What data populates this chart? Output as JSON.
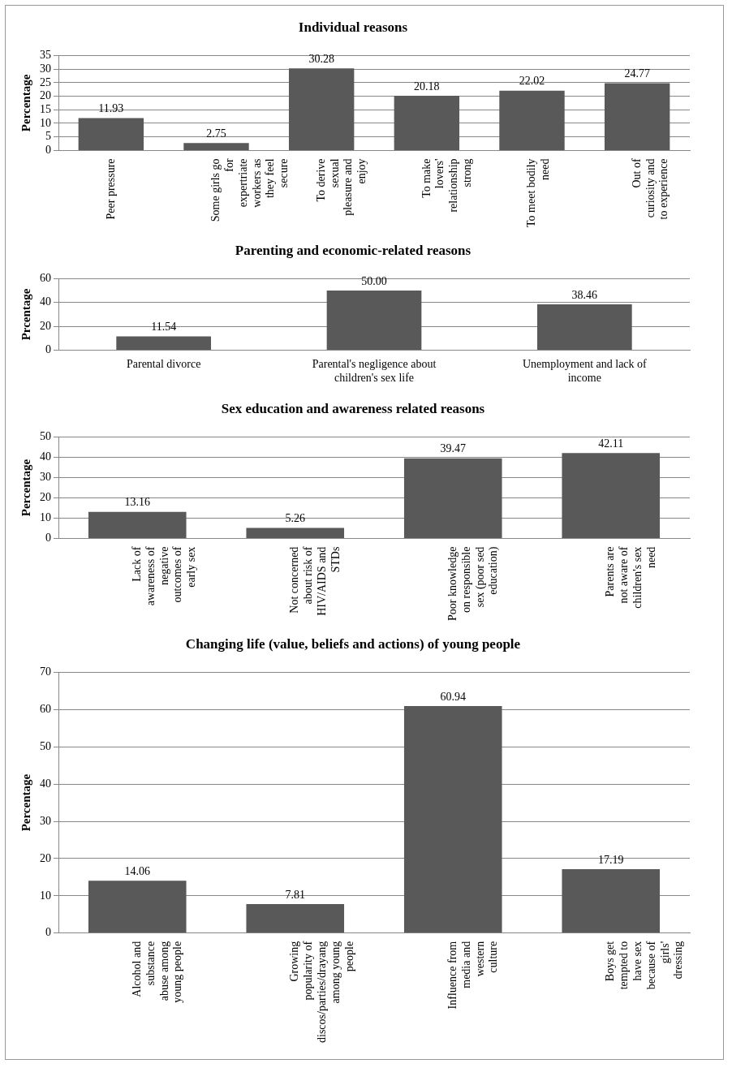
{
  "chart_data": [
    {
      "type": "bar",
      "title": "Individual reasons",
      "ylabel": "Percentage",
      "categories": [
        "Peer pressure",
        "Some girls go for expertriate workers as they feel secure",
        "To derive sexual pleasure and enjoy",
        "To make lovers' relationship strong",
        "To meet bodily need",
        "Out of curiosity and to experience"
      ],
      "values": [
        11.93,
        2.75,
        30.28,
        20.18,
        22.02,
        24.77
      ],
      "value_labels": [
        "11.93",
        "2.75",
        "30.28",
        "20.18",
        "22.02",
        "24.77"
      ],
      "color": "#595959",
      "ylim": [
        0,
        35
      ],
      "yticks": [
        0,
        5,
        10,
        15,
        20,
        25,
        30,
        35
      ],
      "grid": "y",
      "legend": false
    },
    {
      "type": "bar",
      "title": "Parenting and economic-related reasons",
      "ylabel": "Prcentage",
      "categories": [
        "Parental divorce",
        "Parental's negligence about children's sex life",
        "Unemployment and lack of income"
      ],
      "values": [
        11.54,
        50.0,
        38.46
      ],
      "value_labels": [
        "11.54",
        "50.00",
        "38.46"
      ],
      "color": "#595959",
      "ylim": [
        0,
        60
      ],
      "yticks": [
        0,
        20,
        40,
        60
      ],
      "grid": "y",
      "legend": false
    },
    {
      "type": "bar",
      "title": "Sex education and awareness related reasons",
      "ylabel": "Percentage",
      "categories": [
        "Lack of awareness of negative outcomes of early sex",
        "Not concerned about risk of HIV/AIDS and STDs",
        "Poor knowledge on responsible sex (poor sed education)",
        "Parents are not aware of children's sex need"
      ],
      "values": [
        13.16,
        5.26,
        39.47,
        42.11
      ],
      "value_labels": [
        "13.16",
        "5.26",
        "39.47",
        "42.11"
      ],
      "color": "#595959",
      "ylim": [
        0,
        50
      ],
      "yticks": [
        0,
        10,
        20,
        30,
        40,
        50
      ],
      "grid": "y",
      "legend": false
    },
    {
      "type": "bar",
      "title": "Changing life (value, beliefs and actions) of young people",
      "ylabel": "Percentage",
      "categories": [
        "Alcohol and substance abuse among young people",
        "Growing popularity of discos/parties/drayang among young people",
        "Influence from media and western culture",
        "Boys get tempted to have sex because of girls' dressing"
      ],
      "values": [
        14.06,
        7.81,
        60.94,
        17.19
      ],
      "value_labels": [
        "14.06",
        "7.81",
        "60.94",
        "17.19"
      ],
      "color": "#595959",
      "ylim": [
        0,
        70
      ],
      "yticks": [
        0,
        10,
        20,
        30,
        40,
        50,
        60,
        70
      ],
      "grid": "y",
      "legend": false
    }
  ]
}
